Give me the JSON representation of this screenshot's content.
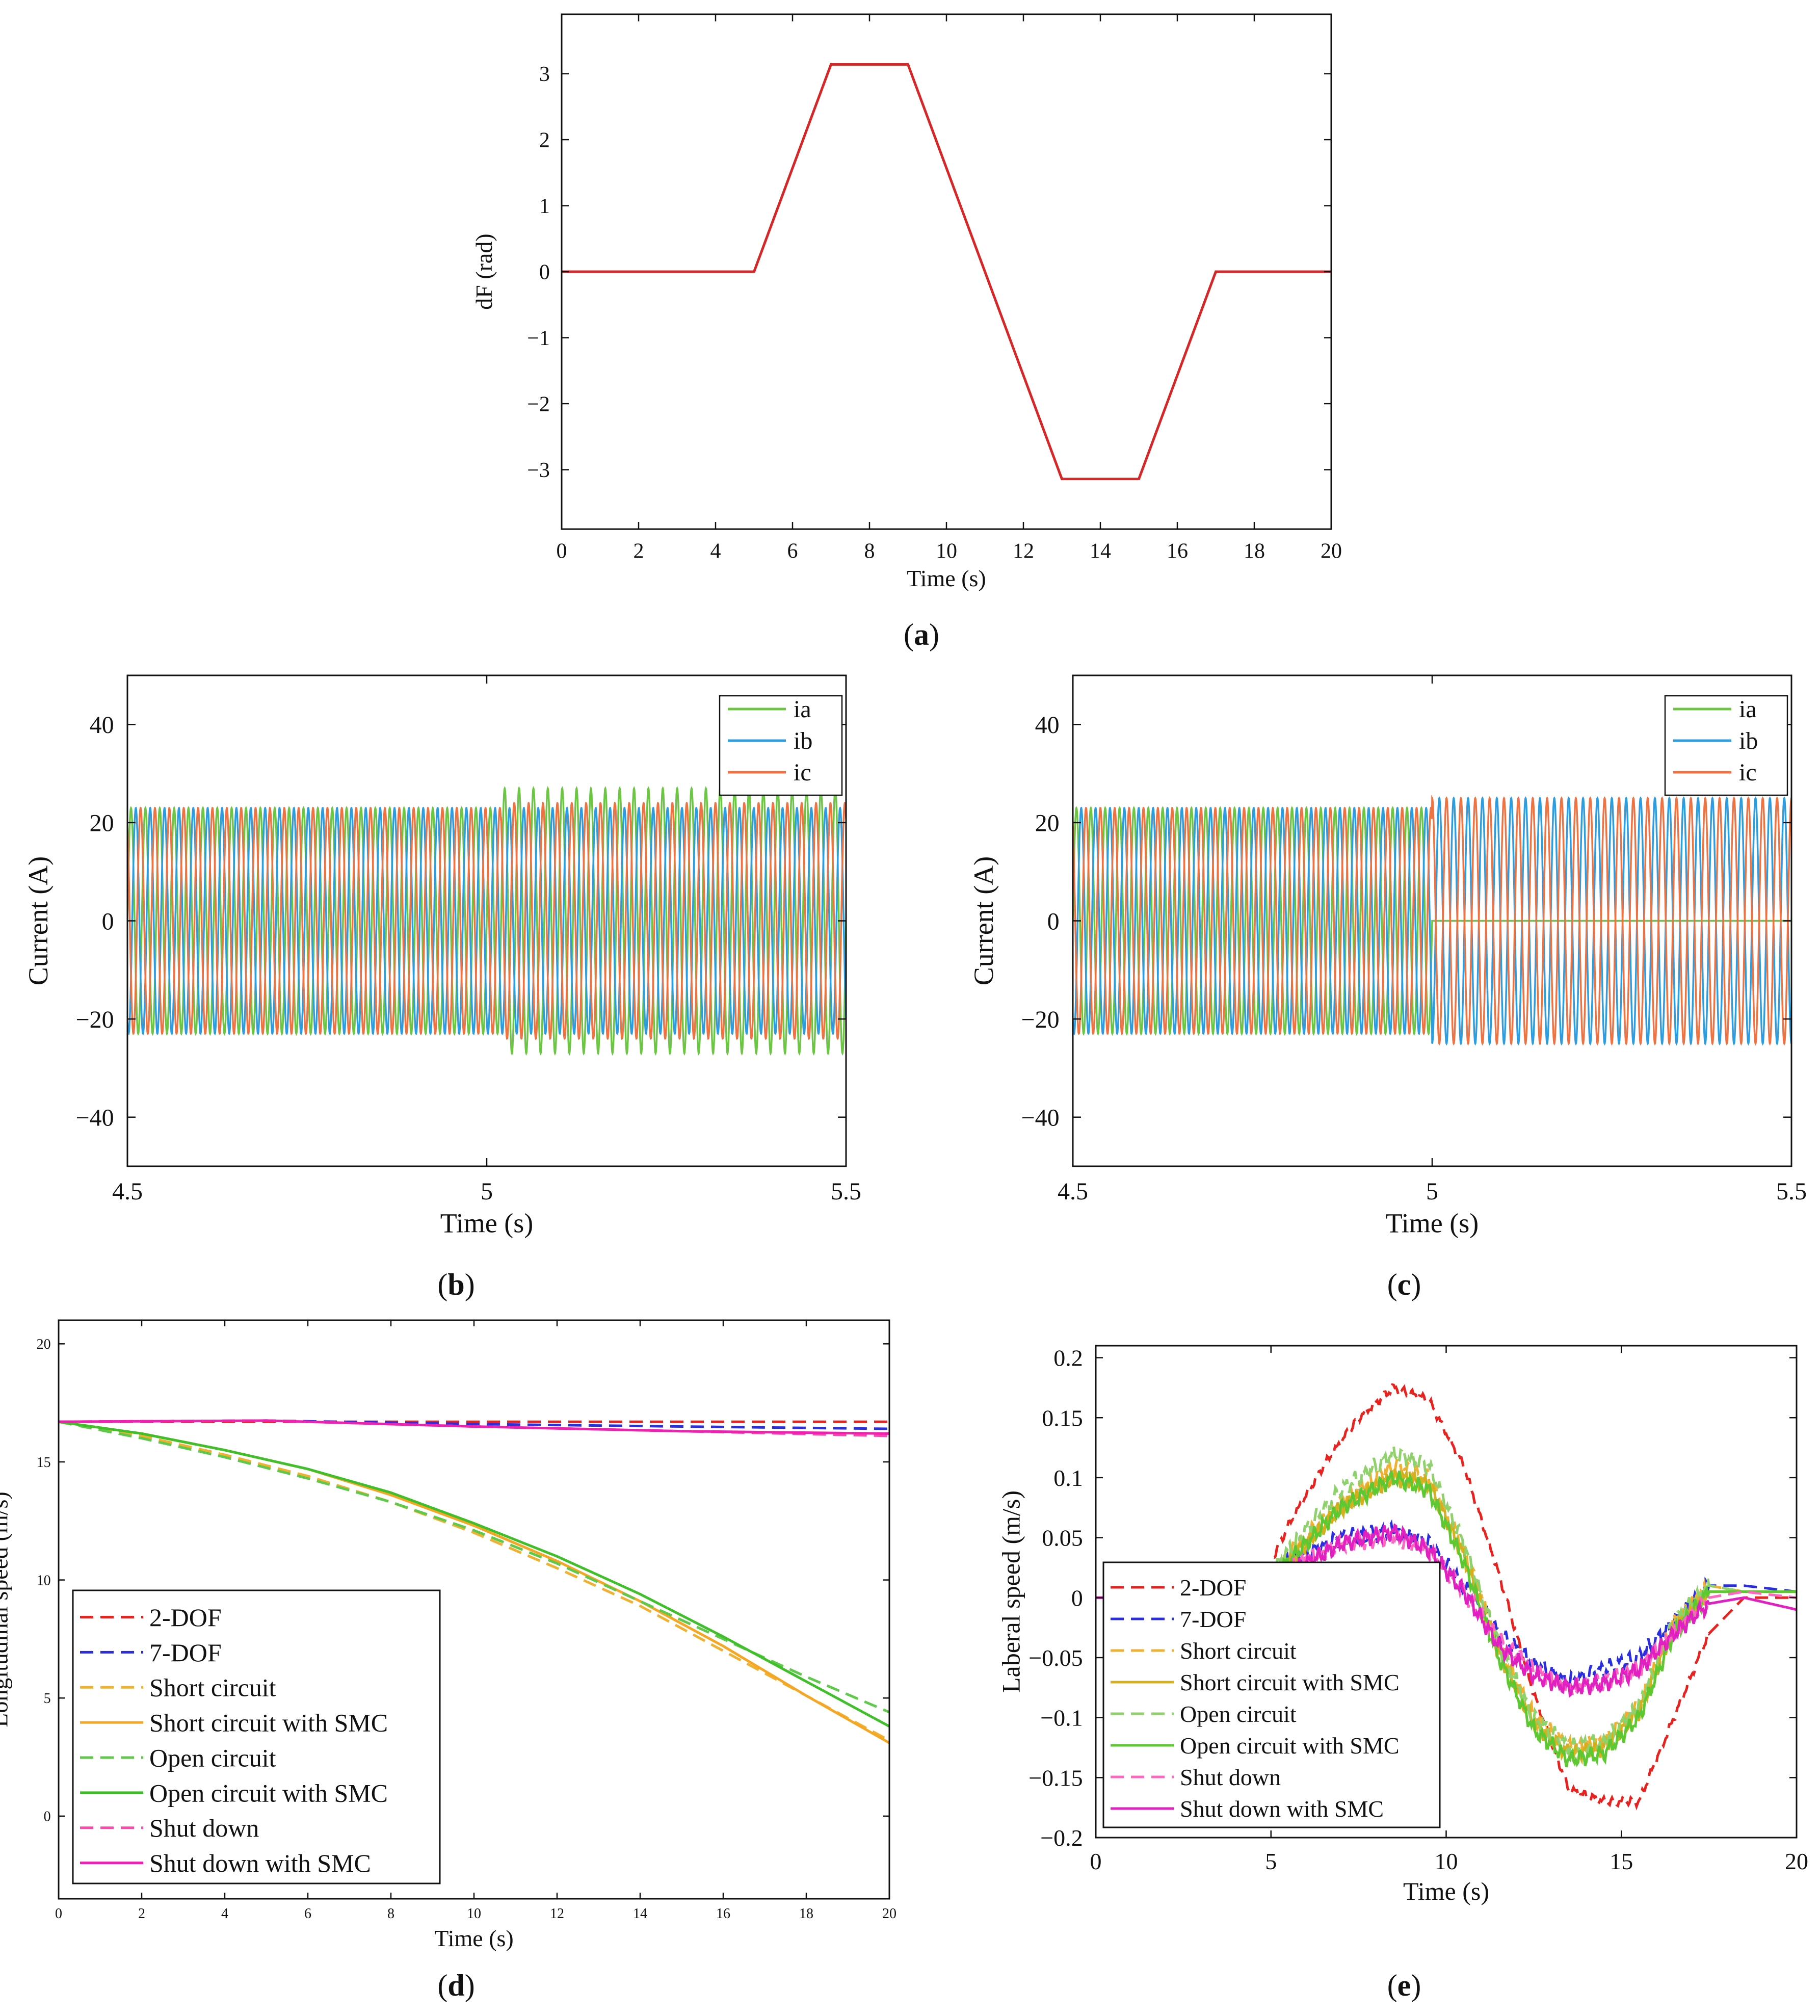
{
  "figure": {
    "panels": [
      {
        "key": "a",
        "caption": "(a)",
        "caption_letter": "a"
      },
      {
        "key": "b",
        "caption": "(b)",
        "caption_letter": "b"
      },
      {
        "key": "c",
        "caption": "(c)",
        "caption_letter": "c"
      },
      {
        "key": "d",
        "caption": "(d)",
        "caption_letter": "d"
      },
      {
        "key": "e",
        "caption": "(e)",
        "caption_letter": "e"
      }
    ]
  },
  "chart_data": [
    {
      "id": "a",
      "type": "line",
      "xlabel": "Time (s)",
      "ylabel": "dF (rad)",
      "xlim": [
        0,
        20
      ],
      "ylim": [
        -3.9,
        3.9
      ],
      "xticks": [
        0,
        2,
        4,
        6,
        8,
        10,
        12,
        14,
        16,
        18,
        20
      ],
      "yticks": [
        -3,
        -2,
        -1,
        0,
        1,
        2,
        3
      ],
      "ytick_labels": [
        "−3",
        "−2",
        "−1",
        "0",
        "1",
        "2",
        "3"
      ],
      "grid": false,
      "series": [
        {
          "color": "#d62728",
          "style": "solid",
          "x": [
            0,
            5,
            7,
            9,
            13,
            15,
            17,
            20
          ],
          "y": [
            0,
            0,
            3.14,
            3.14,
            -3.14,
            -3.14,
            0,
            0
          ]
        }
      ]
    },
    {
      "id": "b",
      "type": "line",
      "xlabel": "Time (s)",
      "ylabel": "Current (A)",
      "xlim": [
        4.5,
        5.5
      ],
      "ylim": [
        -50,
        50
      ],
      "xticks": [
        4.5,
        5,
        5.5
      ],
      "yticks": [
        -40,
        -20,
        0,
        20,
        40
      ],
      "ytick_labels": [
        "−40",
        "−20",
        "0",
        "20",
        "40"
      ],
      "grid": false,
      "legend": {
        "position": "top-right"
      },
      "signal": {
        "frequency_hz": 50,
        "amplitude": 23,
        "fault_time": 5.02,
        "post_fault_amplitude_ia": 27,
        "post_fault_amplitude_ic": 24,
        "description_kind": "short-circuit"
      },
      "series": [
        {
          "name": "ia",
          "color": "#6cc644",
          "phase_deg": 0
        },
        {
          "name": "ib",
          "color": "#2e9de0",
          "phase_deg": -120
        },
        {
          "name": "ic",
          "color": "#ee7242",
          "phase_deg": 120
        }
      ]
    },
    {
      "id": "c",
      "type": "line",
      "xlabel": "Time (s)",
      "ylabel": "Current (A)",
      "xlim": [
        4.5,
        5.5
      ],
      "ylim": [
        -50,
        50
      ],
      "xticks": [
        4.5,
        5,
        5.5
      ],
      "yticks": [
        -40,
        -20,
        0,
        20,
        40
      ],
      "ytick_labels": [
        "−40",
        "−20",
        "0",
        "20",
        "40"
      ],
      "grid": false,
      "legend": {
        "position": "top-right"
      },
      "signal": {
        "frequency_hz": 50,
        "amplitude": 23,
        "fault_time": 5.0,
        "post_fault_amplitude": 25,
        "description_kind": "open-circuit"
      },
      "series": [
        {
          "name": "ia",
          "color": "#6cc644",
          "phase_deg": 0
        },
        {
          "name": "ib",
          "color": "#2e9de0",
          "phase_deg": -120
        },
        {
          "name": "ic",
          "color": "#ee7242",
          "phase_deg": 120
        }
      ]
    },
    {
      "id": "d",
      "type": "line",
      "xlabel": "Time (s)",
      "ylabel": "Longitudinal speed (m/s)",
      "xlim": [
        0,
        20
      ],
      "ylim": [
        -3.5,
        21
      ],
      "xticks": [
        0,
        2,
        4,
        6,
        8,
        10,
        12,
        14,
        16,
        18,
        20
      ],
      "yticks": [
        0,
        5,
        10,
        15,
        20
      ],
      "grid": false,
      "legend": {
        "position": "bottom-left"
      },
      "series": [
        {
          "name": "2-DOF",
          "color": "#e8221f",
          "style": "dashed",
          "x": [
            0,
            5,
            10,
            15,
            20
          ],
          "y": [
            16.7,
            16.7,
            16.7,
            16.7,
            16.7
          ]
        },
        {
          "name": "7-DOF",
          "color": "#2a2ee0",
          "style": "dashed",
          "x": [
            0,
            5,
            10,
            15,
            20
          ],
          "y": [
            16.7,
            16.75,
            16.6,
            16.5,
            16.4
          ]
        },
        {
          "name": "Short circuit",
          "color": "#f0b030",
          "style": "dashed",
          "x": [
            0,
            2,
            4,
            6,
            8,
            10,
            12,
            14,
            16,
            18,
            20
          ],
          "y": [
            16.7,
            16.1,
            15.3,
            14.4,
            13.3,
            12.0,
            10.5,
            8.9,
            7.0,
            5.1,
            3.2
          ]
        },
        {
          "name": "Short circuit with SMC",
          "color": "#f5a623",
          "style": "solid",
          "x": [
            0,
            2,
            4,
            6,
            8,
            10,
            12,
            14,
            16,
            18,
            20
          ],
          "y": [
            16.7,
            16.2,
            15.5,
            14.7,
            13.6,
            12.3,
            10.8,
            9.1,
            7.2,
            5.1,
            3.1
          ]
        },
        {
          "name": "Open circuit",
          "color": "#5ec94a",
          "style": "dashed",
          "x": [
            0,
            2,
            4,
            6,
            8,
            10,
            12,
            14,
            16,
            18,
            20
          ],
          "y": [
            16.7,
            16.0,
            15.2,
            14.3,
            13.3,
            12.1,
            10.7,
            9.1,
            7.5,
            5.9,
            4.4
          ]
        },
        {
          "name": "Open circuit with SMC",
          "color": "#3fbf2a",
          "style": "solid",
          "x": [
            0,
            2,
            4,
            6,
            8,
            10,
            12,
            14,
            16,
            18,
            20
          ],
          "y": [
            16.7,
            16.2,
            15.5,
            14.7,
            13.7,
            12.4,
            11.0,
            9.4,
            7.6,
            5.7,
            3.8
          ]
        },
        {
          "name": "Shut down",
          "color": "#ff44b0",
          "style": "dashed",
          "x": [
            0,
            5,
            10,
            15,
            20
          ],
          "y": [
            16.7,
            16.75,
            16.5,
            16.3,
            16.1
          ]
        },
        {
          "name": "Shut down with SMC",
          "color": "#f020b0",
          "style": "solid",
          "x": [
            0,
            5,
            10,
            15,
            20
          ],
          "y": [
            16.7,
            16.75,
            16.5,
            16.3,
            16.2
          ]
        }
      ]
    },
    {
      "id": "e",
      "type": "line",
      "xlabel": "Time (s)",
      "ylabel": "Laberal speed (m/s)",
      "xlim": [
        0,
        20
      ],
      "ylim": [
        -0.2,
        0.21
      ],
      "xticks": [
        0,
        5,
        10,
        15,
        20
      ],
      "yticks": [
        -0.2,
        -0.15,
        -0.1,
        -0.05,
        0,
        0.05,
        0.1,
        0.15,
        0.2
      ],
      "ytick_labels": [
        "−0.2",
        "−0.15",
        "−0.1",
        "−0.05",
        "0",
        "0.05",
        "0.1",
        "0.15",
        "0.2"
      ],
      "grid": false,
      "legend": {
        "position": "bottom-left"
      },
      "series": [
        {
          "name": "2-DOF",
          "color": "#e8221f",
          "style": "dashed",
          "x": [
            0,
            4.5,
            5.5,
            6.5,
            7.5,
            8.5,
            9.5,
            10.5,
            11.5,
            12.5,
            13.5,
            14.5,
            15.5,
            16.5,
            17.5,
            18.5,
            20
          ],
          "y": [
            0,
            0,
            0.06,
            0.11,
            0.15,
            0.175,
            0.165,
            0.11,
            0.02,
            -0.08,
            -0.16,
            -0.17,
            -0.17,
            -0.1,
            -0.03,
            0,
            0
          ]
        },
        {
          "name": "7-DOF",
          "color": "#2a2ee0",
          "style": "dashed",
          "x": [
            0,
            4.5,
            5.5,
            7,
            8.5,
            9.5,
            10.5,
            11.5,
            12.5,
            13.5,
            14.5,
            15.5,
            16.5,
            17.5,
            18.5,
            20
          ],
          "y": [
            0,
            0,
            0.03,
            0.05,
            0.055,
            0.045,
            0.01,
            -0.03,
            -0.055,
            -0.07,
            -0.06,
            -0.05,
            -0.02,
            0.01,
            0.01,
            0.005
          ]
        },
        {
          "name": "Short circuit",
          "color": "#f0b030",
          "style": "dashed",
          "x": [
            0,
            4.5,
            5.5,
            7,
            8.5,
            9.5,
            10.5,
            11.5,
            12.5,
            13.5,
            14.5,
            15.5,
            16.5,
            17.5,
            18.5,
            20
          ],
          "y": [
            0,
            0,
            0.035,
            0.08,
            0.11,
            0.1,
            0.04,
            -0.04,
            -0.1,
            -0.125,
            -0.12,
            -0.09,
            -0.02,
            0.01,
            0.005,
            0.005
          ]
        },
        {
          "name": "Short circuit with SMC",
          "color": "#d4b020",
          "style": "solid",
          "x": [
            0,
            4.5,
            5.5,
            7,
            8.5,
            9.5,
            10.5,
            11.5,
            12.5,
            13.5,
            14.5,
            15.5,
            16.5,
            17.5,
            18.5,
            20
          ],
          "y": [
            0,
            0,
            0.03,
            0.075,
            0.1,
            0.095,
            0.035,
            -0.045,
            -0.105,
            -0.13,
            -0.125,
            -0.095,
            -0.025,
            0.005,
            0.005,
            0.005
          ]
        },
        {
          "name": "Open circuit",
          "color": "#8fd16a",
          "style": "dashed",
          "x": [
            0,
            4.5,
            5.5,
            7,
            8.5,
            9.5,
            10.5,
            11.5,
            12.5,
            13.5,
            14.5,
            15.5,
            16.5,
            17.5,
            18.5,
            20
          ],
          "y": [
            0,
            0,
            0.04,
            0.09,
            0.12,
            0.11,
            0.045,
            -0.04,
            -0.1,
            -0.125,
            -0.12,
            -0.09,
            -0.02,
            0.01,
            0.005,
            0.005
          ]
        },
        {
          "name": "Open circuit with SMC",
          "color": "#5ec832",
          "style": "solid",
          "x": [
            0,
            4.5,
            5.5,
            7,
            8.5,
            9.5,
            10.5,
            11.5,
            12.5,
            13.5,
            14.5,
            15.5,
            16.5,
            17.5,
            18.5,
            20
          ],
          "y": [
            0,
            0,
            0.03,
            0.075,
            0.1,
            0.09,
            0.03,
            -0.05,
            -0.11,
            -0.135,
            -0.13,
            -0.1,
            -0.03,
            0.005,
            0.005,
            0.005
          ]
        },
        {
          "name": "Shut down",
          "color": "#ff66c0",
          "style": "dashed",
          "x": [
            0,
            4.5,
            5.5,
            7,
            8.5,
            9.5,
            10.5,
            11.5,
            12.5,
            13.5,
            14.5,
            15.5,
            16.5,
            17.5,
            18.5,
            20
          ],
          "y": [
            0,
            0,
            0.025,
            0.045,
            0.05,
            0.04,
            0.005,
            -0.035,
            -0.06,
            -0.075,
            -0.07,
            -0.06,
            -0.03,
            0,
            0.005,
            0
          ]
        },
        {
          "name": "Shut down with SMC",
          "color": "#e020c0",
          "style": "solid",
          "x": [
            0,
            4.5,
            5.5,
            7,
            8.5,
            9.5,
            10.5,
            11.5,
            12.5,
            13.5,
            14.5,
            15.5,
            16.5,
            17.5,
            18.5,
            20
          ],
          "y": [
            0,
            0,
            0.02,
            0.045,
            0.055,
            0.04,
            0.005,
            -0.04,
            -0.065,
            -0.075,
            -0.072,
            -0.06,
            -0.03,
            -0.005,
            0,
            -0.01
          ]
        }
      ]
    }
  ]
}
